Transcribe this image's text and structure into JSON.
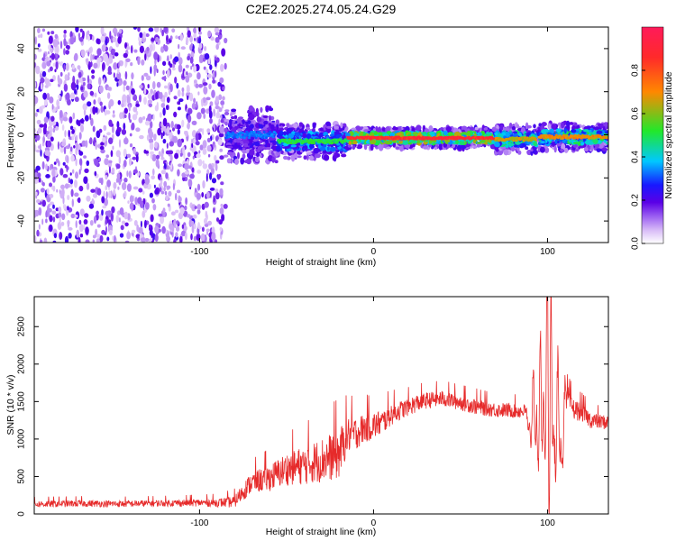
{
  "title": "C2E2.2025.274.05.24.G29",
  "colors": {
    "snr_line": "#e62a2a",
    "colormap": [
      "#ffffff",
      "#d9bdf7",
      "#a066f2",
      "#5a00e6",
      "#1818ff",
      "#00c8ff",
      "#22e82a",
      "#ff8800",
      "#ff2a2a",
      "#ff1a5a"
    ]
  },
  "chart_data": [
    {
      "type": "heatmap",
      "name": "spectrogram",
      "xlabel": "Height of straight line (km)",
      "ylabel": "Frequency (Hz)",
      "xlim": [
        -195,
        135
      ],
      "ylim": [
        -50,
        50
      ],
      "xticks": [
        -100,
        0,
        100
      ],
      "yticks": [
        -40,
        -20,
        0,
        20,
        40
      ],
      "xtick_labels": [
        "-100",
        "0",
        "100"
      ],
      "ytick_labels": [
        "-40",
        "-20",
        "0",
        "20",
        "40"
      ],
      "colorbar": {
        "label": "Normalized spectral amplitude",
        "range": [
          0,
          1
        ],
        "ticks": [
          "0.0",
          "0.2",
          "0.4",
          "0.6",
          "0.8"
        ]
      },
      "regions": [
        {
          "x_range": [
            -195,
            -85
          ],
          "freq_range": [
            -50,
            50
          ],
          "amplitude": 0.1,
          "description": "broadband noise"
        },
        {
          "x_range": [
            -85,
            -55
          ],
          "freq_center": 0,
          "freq_halfwidth": 8,
          "amplitude": 0.35
        },
        {
          "x_range": [
            -55,
            -15
          ],
          "freq_center": -3,
          "freq_halfwidth": 5,
          "amplitude": 0.55
        },
        {
          "x_range": [
            -15,
            70
          ],
          "freq_center": -1.5,
          "freq_halfwidth": 3,
          "amplitude": 0.95
        },
        {
          "x_range": [
            70,
            95
          ],
          "freq_center": -2,
          "freq_halfwidth": 4,
          "amplitude": 0.7
        },
        {
          "x_range": [
            95,
            135
          ],
          "freq_center": -1,
          "freq_halfwidth": 4,
          "amplitude": 0.75
        }
      ]
    },
    {
      "type": "line",
      "name": "snr",
      "xlabel": "Height of straight line (km)",
      "ylabel": "SNR (10 * v/v)",
      "xlim": [
        -195,
        135
      ],
      "ylim": [
        0,
        2900
      ],
      "xticks": [
        -100,
        0,
        100
      ],
      "yticks": [
        0,
        500,
        1000,
        1500,
        2000,
        2500
      ],
      "xtick_labels": [
        "-100",
        "0",
        "100"
      ],
      "ytick_labels": [
        "0",
        "500",
        "1000",
        "1500",
        "2000",
        "2500"
      ],
      "series": [
        {
          "name": "SNR",
          "x": [
            -195,
            -170,
            -145,
            -120,
            -100,
            -90,
            -80,
            -75,
            -70,
            -60,
            -50,
            -40,
            -30,
            -25,
            -20,
            -18,
            -15,
            -10,
            -5,
            0,
            5,
            10,
            15,
            20,
            25,
            30,
            35,
            40,
            50,
            60,
            70,
            80,
            88,
            90,
            92,
            94,
            96,
            98,
            100,
            101,
            102,
            104,
            106,
            108,
            110,
            115,
            120,
            125,
            130,
            135
          ],
          "values": [
            130,
            140,
            135,
            145,
            150,
            150,
            160,
            300,
            420,
            480,
            600,
            650,
            720,
            760,
            800,
            900,
            1050,
            1080,
            1150,
            1180,
            1220,
            1330,
            1380,
            1430,
            1480,
            1510,
            1530,
            1540,
            1490,
            1430,
            1390,
            1380,
            1370,
            900,
            1800,
            600,
            2000,
            700,
            2900,
            200,
            2600,
            300,
            1800,
            500,
            1600,
            1400,
            1350,
            1250,
            1230,
            1220
          ],
          "noise_amplitude": [
            45,
            45,
            45,
            45,
            50,
            55,
            80,
            120,
            140,
            180,
            220,
            260,
            300,
            320,
            340,
            300,
            250,
            220,
            200,
            190,
            170,
            150,
            130,
            120,
            120,
            110,
            110,
            110,
            110,
            110,
            100,
            100,
            100,
            150,
            150,
            150,
            150,
            150,
            150,
            150,
            150,
            150,
            150,
            150,
            150,
            140,
            120,
            110,
            100,
            100
          ]
        }
      ]
    }
  ]
}
